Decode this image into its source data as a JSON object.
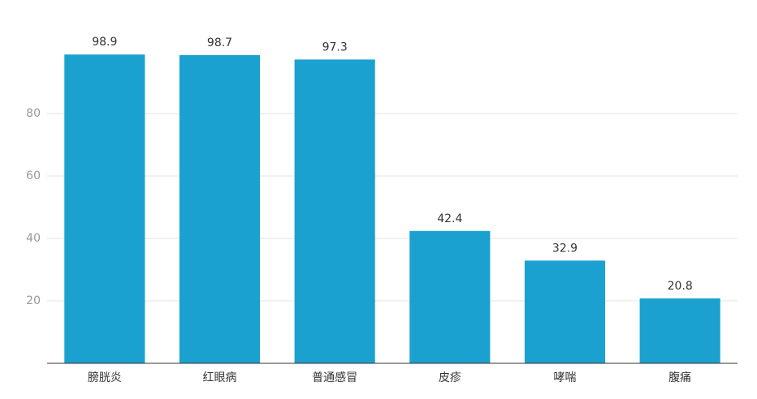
{
  "chart_data": {
    "type": "bar",
    "categories": [
      "膀胱炎",
      "红眼病",
      "普通感冒",
      "皮疹",
      "哮喘",
      "腹痛"
    ],
    "values": [
      98.9,
      98.7,
      97.3,
      42.4,
      32.9,
      20.8
    ],
    "color": "#1ba1cf",
    "ylim": [
      0,
      100
    ],
    "yticks": [
      20,
      40,
      60,
      80
    ],
    "grid": true
  }
}
